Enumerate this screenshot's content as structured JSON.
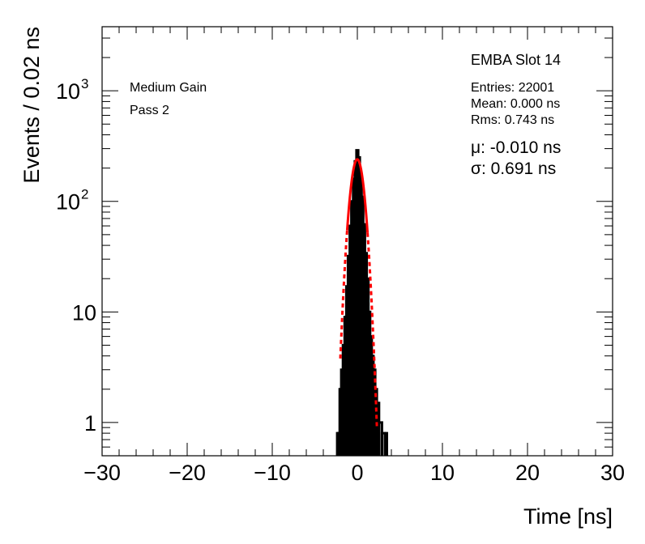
{
  "chart_data": {
    "type": "histogram",
    "ylog": true,
    "xlim": [
      -30,
      30
    ],
    "ylim": [
      0.5,
      3800
    ],
    "xlabel": "Time [ns]",
    "ylabel": "Events / 0.02 ns",
    "x_ticks": [
      -30,
      -20,
      -10,
      0,
      10,
      20,
      30
    ],
    "x_tick_labels": [
      "−30",
      "−20",
      "−10",
      "0",
      "10",
      "20",
      "30"
    ],
    "y_ticks": [
      1,
      10,
      100,
      1000
    ],
    "y_tick_labels": [
      {
        "base": "1",
        "exp": ""
      },
      {
        "base": "10",
        "exp": ""
      },
      {
        "base": "10",
        "exp": "2"
      },
      {
        "base": "10",
        "exp": "3"
      }
    ],
    "legend_position": "top-right",
    "grid": false,
    "annotations": {
      "gain": "Medium Gain",
      "pass": "Pass 2",
      "module": "EMBA Slot 14",
      "entries": "Entries: 22001",
      "mean": "Mean: 0.000 ns",
      "rms": "Rms: 0.743 ns",
      "mu": "μ: -0.010 ns",
      "sigma": "σ: 0.691 ns"
    },
    "histogram": {
      "color": "#000000",
      "bins": [
        {
          "x": -2.3,
          "y": 0.8
        },
        {
          "x": -2.15,
          "y": 0.8
        },
        {
          "x": -2.0,
          "y": 2
        },
        {
          "x": -1.8,
          "y": 3
        },
        {
          "x": -1.6,
          "y": 5
        },
        {
          "x": -1.4,
          "y": 9
        },
        {
          "x": -1.2,
          "y": 17
        },
        {
          "x": -1.0,
          "y": 32
        },
        {
          "x": -0.8,
          "y": 60
        },
        {
          "x": -0.6,
          "y": 100
        },
        {
          "x": -0.4,
          "y": 160
        },
        {
          "x": -0.2,
          "y": 230
        },
        {
          "x": 0.0,
          "y": 290
        },
        {
          "x": 0.2,
          "y": 250
        },
        {
          "x": 0.4,
          "y": 170
        },
        {
          "x": 0.6,
          "y": 110
        },
        {
          "x": 0.8,
          "y": 62
        },
        {
          "x": 1.0,
          "y": 34
        },
        {
          "x": 1.2,
          "y": 20
        },
        {
          "x": 1.4,
          "y": 10
        },
        {
          "x": 1.6,
          "y": 6
        },
        {
          "x": 1.8,
          "y": 4
        },
        {
          "x": 2.0,
          "y": 3
        },
        {
          "x": 2.2,
          "y": 2
        },
        {
          "x": 2.4,
          "y": 1.5
        },
        {
          "x": 2.7,
          "y": 1
        },
        {
          "x": 3.1,
          "y": 0.8
        },
        {
          "x": 3.4,
          "y": 0.8
        }
      ]
    },
    "fit": {
      "color": "#ff0000",
      "mu": -0.01,
      "sigma": 0.691,
      "amplitude": 240,
      "fit_range": [
        -1.2,
        1.2
      ],
      "draw_range": [
        -2.0,
        2.3
      ]
    }
  }
}
